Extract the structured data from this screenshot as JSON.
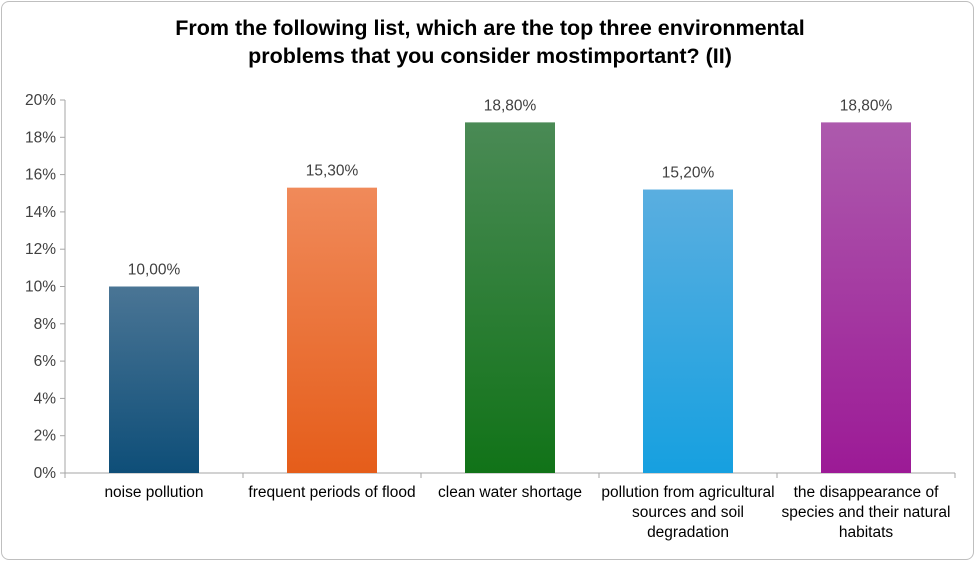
{
  "chart_data": {
    "type": "bar",
    "title": "From the following list, which are the top three environmental\nproblems that you consider mostimportant? (II)",
    "categories": [
      "noise pollution",
      "frequent periods of flood",
      "clean water shortage",
      "pollution from agricultural sources and soil degradation",
      "the disappearance of species and their natural habitats"
    ],
    "values": [
      10.0,
      15.3,
      18.8,
      15.2,
      18.8
    ],
    "data_labels": [
      "10,00%",
      "15,30%",
      "18,80%",
      "15,20%",
      "18,80%"
    ],
    "ylim": [
      0,
      20
    ],
    "yticks": [
      "0%",
      "2%",
      "4%",
      "6%",
      "8%",
      "10%",
      "12%",
      "14%",
      "16%",
      "18%",
      "20%"
    ],
    "grid": false,
    "legend": "none",
    "colors": [
      {
        "top": "#4a7595",
        "bottom": "#0e4e78"
      },
      {
        "top": "#f08a5a",
        "bottom": "#e55d1a"
      },
      {
        "top": "#4a8a55",
        "bottom": "#117318"
      },
      {
        "top": "#5aaee0",
        "bottom": "#16a0e0"
      },
      {
        "top": "#ad5aad",
        "bottom": "#9c1a96"
      }
    ]
  }
}
